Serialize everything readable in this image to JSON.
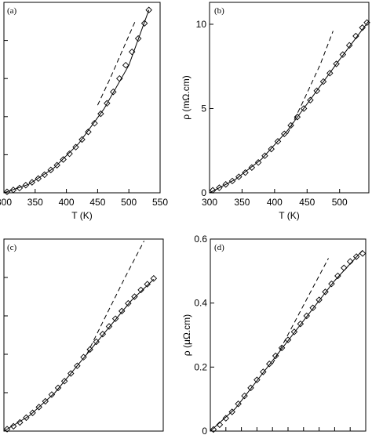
{
  "chart_data": [
    {
      "type": "scatter",
      "panel_label": "(a)",
      "xlabel": "T (K)",
      "ylabel": "",
      "xlim": [
        300,
        550
      ],
      "ylim": [
        0,
        1
      ],
      "x_ticks": [
        300,
        350,
        400,
        450,
        500,
        550
      ],
      "x_tick_labels": [
        "300",
        "350",
        "400",
        "450",
        "500",
        "550"
      ],
      "y_ticks": [
        0.0,
        0.2,
        0.4,
        0.6,
        0.8
      ],
      "y_tick_labels": [],
      "grid": false,
      "series": [
        {
          "style": "markers",
          "marker": "diamond",
          "x": [
            305,
            315,
            325,
            335,
            345,
            355,
            365,
            375,
            385,
            395,
            405,
            415,
            425,
            435,
            445,
            455,
            465,
            475,
            485,
            495,
            505,
            515,
            525,
            532
          ],
          "y": [
            0.005,
            0.015,
            0.025,
            0.04,
            0.055,
            0.075,
            0.095,
            0.12,
            0.145,
            0.175,
            0.205,
            0.24,
            0.28,
            0.32,
            0.365,
            0.415,
            0.47,
            0.53,
            0.6,
            0.67,
            0.74,
            0.81,
            0.89,
            0.96
          ]
        },
        {
          "style": "solid",
          "x": [
            300,
            340,
            380,
            420,
            460,
            500,
            532
          ],
          "y": [
            0.0,
            0.045,
            0.13,
            0.26,
            0.44,
            0.67,
            0.96
          ]
        },
        {
          "style": "dashed",
          "x": [
            450,
            470,
            490,
            510
          ],
          "y": [
            0.46,
            0.6,
            0.75,
            0.9
          ]
        }
      ]
    },
    {
      "type": "scatter",
      "panel_label": "(b)",
      "xlabel": "T (K)",
      "ylabel": "ρ (mΩ.cm)",
      "xlim": [
        300,
        545
      ],
      "ylim": [
        0,
        11.3
      ],
      "x_ticks": [
        300,
        350,
        400,
        450,
        500
      ],
      "x_tick_labels": [
        "300",
        "350",
        "400",
        "450",
        "500"
      ],
      "y_ticks": [
        0,
        5,
        10
      ],
      "y_tick_labels": [
        "0",
        "5",
        "10"
      ],
      "grid": false,
      "series": [
        {
          "style": "markers",
          "marker": "diamond",
          "x": [
            305,
            315,
            325,
            335,
            345,
            355,
            365,
            375,
            385,
            395,
            405,
            415,
            425,
            435,
            445,
            455,
            465,
            475,
            485,
            495,
            505,
            515,
            525,
            535,
            542
          ],
          "y": [
            0.15,
            0.3,
            0.5,
            0.7,
            0.95,
            1.2,
            1.5,
            1.8,
            2.2,
            2.6,
            3.05,
            3.5,
            4.0,
            4.5,
            5.0,
            5.5,
            6.05,
            6.6,
            7.1,
            7.65,
            8.2,
            8.75,
            9.3,
            9.8,
            10.1
          ]
        },
        {
          "style": "solid",
          "x": [
            300,
            340,
            380,
            420,
            460,
            500,
            545
          ],
          "y": [
            0.0,
            0.8,
            2.0,
            3.7,
            5.8,
            7.9,
            10.2
          ]
        },
        {
          "style": "dashed",
          "x": [
            420,
            445,
            470,
            490
          ],
          "y": [
            3.5,
            5.5,
            7.6,
            9.6
          ]
        }
      ]
    },
    {
      "type": "scatter",
      "panel_label": "(c)",
      "xlabel": "",
      "ylabel": "",
      "xlim": [
        300,
        550
      ],
      "ylim": [
        0,
        1
      ],
      "x_ticks": [],
      "x_tick_labels": [],
      "y_ticks": [
        0.0,
        0.2,
        0.4,
        0.6,
        0.8
      ],
      "y_tick_labels": [],
      "grid": false,
      "series": [
        {
          "style": "markers",
          "marker": "diamond",
          "x": [
            305,
            315,
            325,
            335,
            345,
            355,
            365,
            375,
            385,
            395,
            405,
            415,
            425,
            435,
            445,
            455,
            465,
            475,
            485,
            495,
            505,
            515,
            525,
            535
          ],
          "y": [
            0.01,
            0.025,
            0.045,
            0.07,
            0.095,
            0.125,
            0.155,
            0.19,
            0.225,
            0.26,
            0.3,
            0.34,
            0.385,
            0.425,
            0.465,
            0.505,
            0.545,
            0.585,
            0.625,
            0.665,
            0.7,
            0.735,
            0.765,
            0.795
          ]
        },
        {
          "style": "solid",
          "x": [
            300,
            340,
            380,
            420,
            460,
            500,
            535
          ],
          "y": [
            0.0,
            0.08,
            0.2,
            0.36,
            0.52,
            0.68,
            0.79
          ]
        },
        {
          "style": "dashed",
          "x": [
            430,
            460,
            490,
            520
          ],
          "y": [
            0.4,
            0.6,
            0.8,
            0.99
          ]
        }
      ]
    },
    {
      "type": "scatter",
      "panel_label": "(d)",
      "xlabel": "",
      "ylabel": "ρ (μΩ.cm)",
      "xlim": [
        300,
        550
      ],
      "ylim": [
        0,
        0.6
      ],
      "x_ticks": [
        300,
        325,
        350,
        375,
        400,
        425,
        450,
        475,
        500,
        525,
        550
      ],
      "x_tick_labels": [],
      "y_ticks": [
        0,
        0.2,
        0.4,
        0.6
      ],
      "y_tick_labels": [
        "0",
        "0.2",
        "0.4",
        "0.6"
      ],
      "grid": false,
      "series": [
        {
          "style": "markers",
          "marker": "diamond",
          "x": [
            305,
            315,
            325,
            335,
            345,
            355,
            365,
            375,
            385,
            395,
            405,
            415,
            425,
            435,
            445,
            455,
            465,
            475,
            485,
            495,
            505,
            515,
            525,
            535,
            545
          ],
          "y": [
            0.005,
            0.02,
            0.04,
            0.06,
            0.085,
            0.11,
            0.135,
            0.16,
            0.185,
            0.21,
            0.235,
            0.26,
            0.285,
            0.31,
            0.335,
            0.36,
            0.385,
            0.41,
            0.435,
            0.46,
            0.485,
            0.51,
            0.53,
            0.545,
            0.555
          ]
        },
        {
          "style": "solid",
          "x": [
            300,
            340,
            380,
            420,
            460,
            500,
            545
          ],
          "y": [
            0.0,
            0.07,
            0.17,
            0.27,
            0.37,
            0.47,
            0.565
          ]
        },
        {
          "style": "dashed",
          "x": [
            400,
            430,
            460,
            490
          ],
          "y": [
            0.21,
            0.32,
            0.43,
            0.54
          ]
        }
      ]
    }
  ]
}
